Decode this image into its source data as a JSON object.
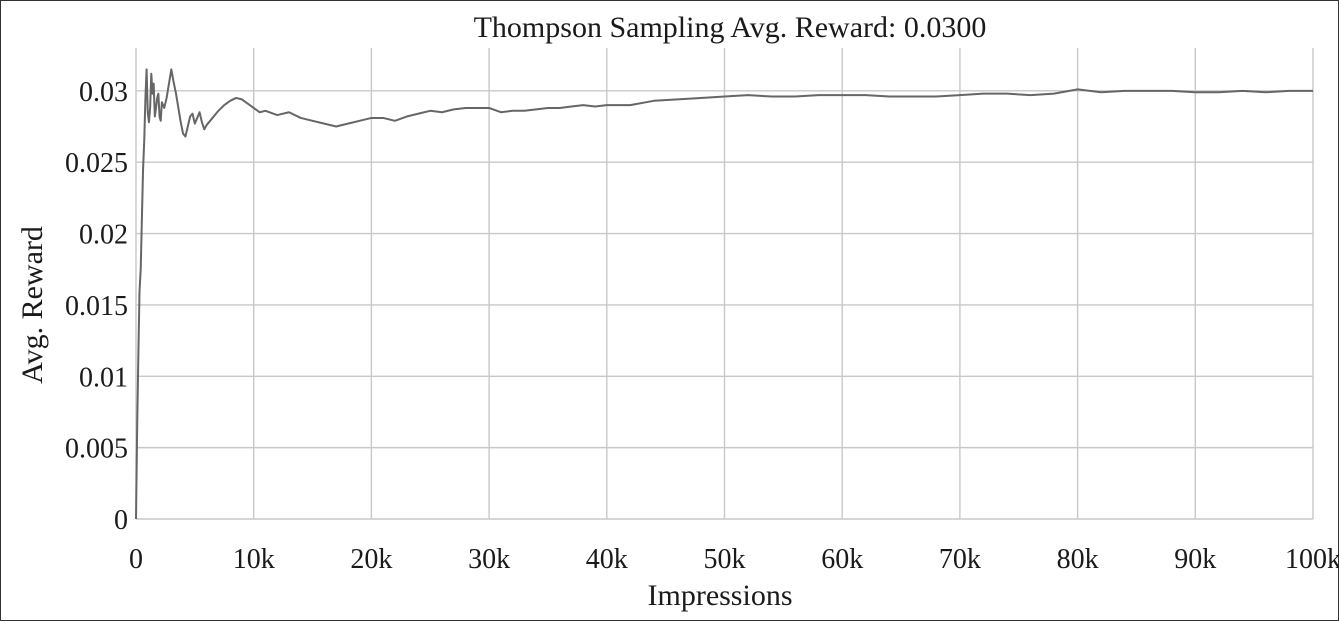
{
  "chart_data": {
    "type": "line",
    "title": "Thompson Sampling Avg. Reward: 0.0300",
    "xlabel": "Impressions",
    "ylabel": "Avg. Reward",
    "xlim": [
      0,
      100000
    ],
    "ylim": [
      0,
      0.033
    ],
    "grid": true,
    "x_ticks": [
      0,
      10000,
      20000,
      30000,
      40000,
      50000,
      60000,
      70000,
      80000,
      90000,
      100000
    ],
    "x_tick_labels": [
      "0",
      "10k",
      "20k",
      "30k",
      "40k",
      "50k",
      "60k",
      "70k",
      "80k",
      "90k",
      "100k"
    ],
    "y_ticks": [
      0,
      0.005,
      0.01,
      0.015,
      0.02,
      0.025,
      0.03
    ],
    "y_tick_labels": [
      "0",
      "0.005",
      "0.01",
      "0.015",
      "0.02",
      "0.025",
      "0.03"
    ],
    "series": [
      {
        "color": "#666666",
        "x": [
          0,
          100,
          200,
          300,
          400,
          500,
          600,
          700,
          800,
          900,
          1000,
          1100,
          1200,
          1300,
          1400,
          1500,
          1600,
          1700,
          1800,
          1900,
          2000,
          2100,
          2200,
          2400,
          2600,
          2800,
          3000,
          3200,
          3400,
          3600,
          3800,
          4000,
          4200,
          4400,
          4600,
          4800,
          5000,
          5200,
          5400,
          5600,
          5800,
          6000,
          6500,
          7000,
          7500,
          8000,
          8500,
          9000,
          9500,
          10000,
          10500,
          11000,
          12000,
          13000,
          14000,
          15000,
          16000,
          17000,
          18000,
          19000,
          20000,
          21000,
          22000,
          23000,
          24000,
          25000,
          26000,
          27000,
          28000,
          29000,
          30000,
          31000,
          32000,
          33000,
          34000,
          35000,
          36000,
          37000,
          38000,
          39000,
          40000,
          42000,
          44000,
          46000,
          48000,
          50000,
          52000,
          54000,
          56000,
          58000,
          60000,
          62000,
          64000,
          66000,
          68000,
          70000,
          72000,
          74000,
          76000,
          78000,
          80000,
          82000,
          84000,
          86000,
          88000,
          90000,
          92000,
          94000,
          96000,
          98000,
          100000
        ],
        "values": [
          0,
          0.0065,
          0.0115,
          0.016,
          0.0175,
          0.021,
          0.0245,
          0.0265,
          0.0295,
          0.0315,
          0.0285,
          0.0278,
          0.0288,
          0.0312,
          0.0298,
          0.0305,
          0.0282,
          0.0288,
          0.0295,
          0.0298,
          0.0282,
          0.0279,
          0.0292,
          0.0288,
          0.0295,
          0.0305,
          0.0315,
          0.0306,
          0.0298,
          0.0288,
          0.0278,
          0.027,
          0.0268,
          0.0275,
          0.0282,
          0.0284,
          0.0277,
          0.0281,
          0.0285,
          0.0278,
          0.0273,
          0.0276,
          0.0281,
          0.0286,
          0.029,
          0.0293,
          0.0295,
          0.0294,
          0.0291,
          0.0288,
          0.0285,
          0.0286,
          0.0283,
          0.0285,
          0.0281,
          0.0279,
          0.0277,
          0.0275,
          0.0277,
          0.0279,
          0.0281,
          0.0281,
          0.0279,
          0.0282,
          0.0284,
          0.0286,
          0.0285,
          0.0287,
          0.0288,
          0.0288,
          0.0288,
          0.0285,
          0.0286,
          0.0286,
          0.0287,
          0.0288,
          0.0288,
          0.0289,
          0.029,
          0.0289,
          0.029,
          0.029,
          0.0293,
          0.0294,
          0.0295,
          0.0296,
          0.0297,
          0.0296,
          0.0296,
          0.0297,
          0.0297,
          0.0297,
          0.0296,
          0.0296,
          0.0296,
          0.0297,
          0.0298,
          0.0298,
          0.0297,
          0.0298,
          0.0301,
          0.0299,
          0.03,
          0.03,
          0.03,
          0.0299,
          0.0299,
          0.03,
          0.0299,
          0.03,
          0.03
        ]
      }
    ]
  }
}
